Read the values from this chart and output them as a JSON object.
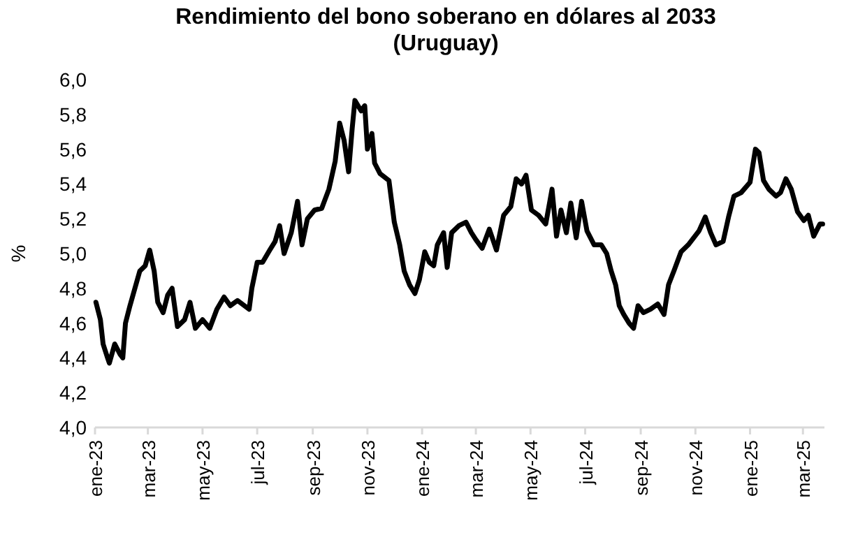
{
  "chart_data": {
    "type": "line",
    "title": "Rendimiento del bono soberano en dólares al 2033\n(Uruguay)",
    "ylabel": "%",
    "xlim": [
      "2023-01-01",
      "2025-03-25"
    ],
    "ylim": [
      4,
      6
    ],
    "yticks": [
      {
        "value": 4,
        "label": "4,0"
      },
      {
        "value": 4.2,
        "label": "4,2"
      },
      {
        "value": 4.4,
        "label": "4,4"
      },
      {
        "value": 4.6,
        "label": "4,6"
      },
      {
        "value": 4.8,
        "label": "4,8"
      },
      {
        "value": 5,
        "label": "5,0"
      },
      {
        "value": 5.2,
        "label": "5,2"
      },
      {
        "value": 5.4,
        "label": "5,4"
      },
      {
        "value": 5.6,
        "label": "5,6"
      },
      {
        "value": 5.8,
        "label": "5,8"
      },
      {
        "value": 6,
        "label": "6,0"
      }
    ],
    "xticks": [
      {
        "value": "2023-01-01",
        "label": "ene-23"
      },
      {
        "value": "2023-03-01",
        "label": "mar-23"
      },
      {
        "value": "2023-05-01",
        "label": "may-23"
      },
      {
        "value": "2023-07-01",
        "label": "jul-23"
      },
      {
        "value": "2023-09-01",
        "label": "sep-23"
      },
      {
        "value": "2023-11-01",
        "label": "nov-23"
      },
      {
        "value": "2024-01-01",
        "label": "ene-24"
      },
      {
        "value": "2024-03-01",
        "label": "mar-24"
      },
      {
        "value": "2024-05-01",
        "label": "may-24"
      },
      {
        "value": "2024-07-01",
        "label": "jul-24"
      },
      {
        "value": "2024-09-01",
        "label": "sep-24"
      },
      {
        "value": "2024-11-01",
        "label": "nov-24"
      },
      {
        "value": "2025-01-01",
        "label": "ene-25"
      },
      {
        "value": "2025-03-01",
        "label": "mar-25"
      }
    ],
    "grid": false,
    "marker": "none",
    "line_style": "solid",
    "x": [
      "2023-01-02",
      "2023-01-07",
      "2023-01-10",
      "2023-01-15",
      "2023-01-17",
      "2023-01-23",
      "2023-01-29",
      "2023-02-01",
      "2023-02-04",
      "2023-02-09",
      "2023-02-20",
      "2023-02-26",
      "2023-03-03",
      "2023-03-08",
      "2023-03-12",
      "2023-03-18",
      "2023-03-23",
      "2023-03-28",
      "2023-04-03",
      "2023-04-11",
      "2023-04-17",
      "2023-04-23",
      "2023-05-01",
      "2023-05-09",
      "2023-05-17",
      "2023-05-25",
      "2023-06-01",
      "2023-06-09",
      "2023-06-22",
      "2023-06-25",
      "2023-07-01",
      "2023-07-07",
      "2023-07-15",
      "2023-07-21",
      "2023-07-26",
      "2023-07-31",
      "2023-08-08",
      "2023-08-15",
      "2023-08-20",
      "2023-08-26",
      "2023-09-03",
      "2023-09-11",
      "2023-09-19",
      "2023-09-26",
      "2023-10-01",
      "2023-10-06",
      "2023-10-11",
      "2023-10-15",
      "2023-10-18",
      "2023-10-25",
      "2023-10-29",
      "2023-11-01",
      "2023-11-06",
      "2023-11-09",
      "2023-11-15",
      "2023-11-25",
      "2023-12-01",
      "2023-12-07",
      "2023-12-12",
      "2023-12-18",
      "2023-12-24",
      "2023-12-29",
      "2024-01-04",
      "2024-01-09",
      "2024-01-14",
      "2024-01-18",
      "2024-01-25",
      "2024-01-29",
      "2024-02-03",
      "2024-02-11",
      "2024-02-19",
      "2024-02-25",
      "2024-03-01",
      "2024-03-08",
      "2024-03-16",
      "2024-03-24",
      "2024-04-01",
      "2024-04-09",
      "2024-04-15",
      "2024-04-21",
      "2024-04-26",
      "2024-05-02",
      "2024-05-10",
      "2024-05-18",
      "2024-05-25",
      "2024-05-30",
      "2024-06-04",
      "2024-06-10",
      "2024-06-15",
      "2024-06-21",
      "2024-06-27",
      "2024-07-03",
      "2024-07-11",
      "2024-07-19",
      "2024-07-25",
      "2024-07-30",
      "2024-08-04",
      "2024-08-08",
      "2024-08-13",
      "2024-08-19",
      "2024-08-24",
      "2024-08-29",
      "2024-09-04",
      "2024-09-12",
      "2024-09-20",
      "2024-09-27",
      "2024-10-02",
      "2024-10-08",
      "2024-10-16",
      "2024-10-24",
      "2024-10-30",
      "2024-11-05",
      "2024-11-12",
      "2024-11-18",
      "2024-11-24",
      "2024-12-02",
      "2024-12-08",
      "2024-12-14",
      "2024-12-22",
      "2025-01-01",
      "2025-01-07",
      "2025-01-11",
      "2025-01-16",
      "2025-01-22",
      "2025-01-30",
      "2025-02-04",
      "2025-02-10",
      "2025-02-16",
      "2025-02-23",
      "2025-03-02",
      "2025-03-07",
      "2025-03-13",
      "2025-03-20",
      "2025-03-23"
    ],
    "series": [
      {
        "color": "#000000",
        "values": [
          4.72,
          4.62,
          4.48,
          4.4,
          4.37,
          4.48,
          4.42,
          4.4,
          4.6,
          4.7,
          4.9,
          4.93,
          5.02,
          4.9,
          4.72,
          4.66,
          4.76,
          4.8,
          4.58,
          4.62,
          4.72,
          4.57,
          4.62,
          4.57,
          4.68,
          4.75,
          4.7,
          4.73,
          4.68,
          4.8,
          4.95,
          4.95,
          5.02,
          5.07,
          5.16,
          5.0,
          5.12,
          5.3,
          5.05,
          5.2,
          5.25,
          5.26,
          5.37,
          5.53,
          5.75,
          5.65,
          5.47,
          5.72,
          5.88,
          5.82,
          5.85,
          5.6,
          5.69,
          5.52,
          5.46,
          5.42,
          5.18,
          5.05,
          4.9,
          4.82,
          4.77,
          4.85,
          5.01,
          4.95,
          4.93,
          5.05,
          5.12,
          4.92,
          5.12,
          5.16,
          5.18,
          5.12,
          5.08,
          5.03,
          5.14,
          5.02,
          5.22,
          5.27,
          5.43,
          5.4,
          5.45,
          5.25,
          5.22,
          5.17,
          5.37,
          5.1,
          5.25,
          5.12,
          5.29,
          5.09,
          5.3,
          5.13,
          5.05,
          5.05,
          5.0,
          4.9,
          4.82,
          4.7,
          4.65,
          4.6,
          4.57,
          4.7,
          4.66,
          4.68,
          4.71,
          4.65,
          4.82,
          4.9,
          5.01,
          5.05,
          5.09,
          5.13,
          5.21,
          5.12,
          5.05,
          5.07,
          5.21,
          5.33,
          5.35,
          5.41,
          5.6,
          5.58,
          5.42,
          5.37,
          5.33,
          5.35,
          5.43,
          5.37,
          5.24,
          5.19,
          5.22,
          5.1,
          5.17,
          5.17
        ]
      }
    ]
  }
}
